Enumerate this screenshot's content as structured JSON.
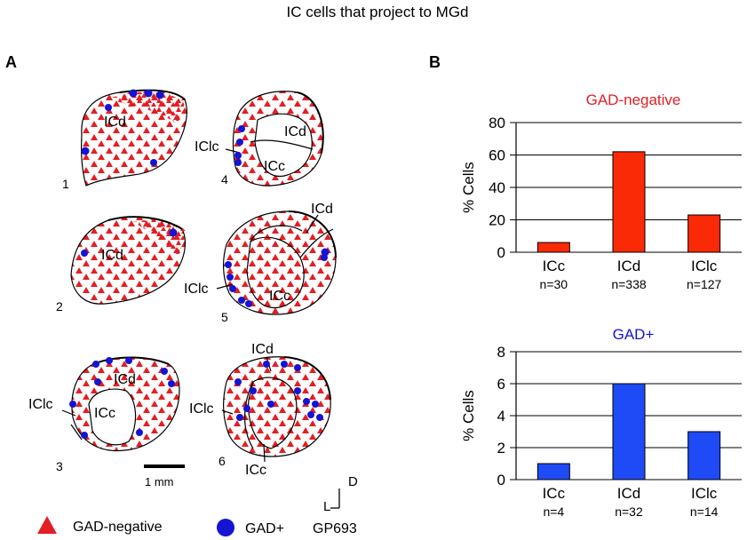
{
  "title": "IC cells that project to MGd",
  "panel_a": {
    "letter": "A",
    "sections": [
      {
        "number": "1",
        "labels": [
          "ICd"
        ]
      },
      {
        "number": "4",
        "labels": [
          "ICd",
          "IClc",
          "ICc"
        ]
      },
      {
        "number": "2",
        "labels": [
          "ICd"
        ]
      },
      {
        "number": "5",
        "labels": [
          "ICd",
          "IClc",
          "ICc"
        ]
      },
      {
        "number": "3",
        "labels": [
          "ICd",
          "IClc",
          "ICc"
        ]
      },
      {
        "number": "6",
        "labels": [
          "ICd",
          "IClc",
          "ICc"
        ]
      }
    ],
    "scale_bar_label": "1 mm",
    "orientation": {
      "dorsal": "D",
      "lateral": "L"
    },
    "legend": {
      "gad_negative": "GAD-negative",
      "gad_positive": "GAD+",
      "case_id": "GP693"
    },
    "colors": {
      "gad_negative": "#e31e24",
      "gad_positive": "#1414d2"
    }
  },
  "panel_b": {
    "letter": "B"
  },
  "chart_data": [
    {
      "type": "bar",
      "title": "GAD-negative",
      "title_color": "#e31e24",
      "bar_color": "#fb2a06",
      "categories": [
        "ICc",
        "ICd",
        "IClc"
      ],
      "counts": [
        "n=30",
        "n=338",
        "n=127"
      ],
      "values": [
        6,
        62,
        23
      ],
      "ylabel": "% Cells",
      "ylim": [
        0,
        80
      ],
      "yticks": [
        0,
        20,
        40,
        60,
        80
      ],
      "grid": true
    },
    {
      "type": "bar",
      "title": "GAD+",
      "title_color": "#1414d2",
      "bar_color": "#1e4bf5",
      "categories": [
        "ICc",
        "ICd",
        "IClc"
      ],
      "counts": [
        "n=4",
        "n=32",
        "n=14"
      ],
      "values": [
        1,
        6,
        3
      ],
      "ylabel": "% Cells",
      "ylim": [
        0,
        8
      ],
      "yticks": [
        0,
        2,
        4,
        6,
        8
      ],
      "grid": true
    }
  ]
}
